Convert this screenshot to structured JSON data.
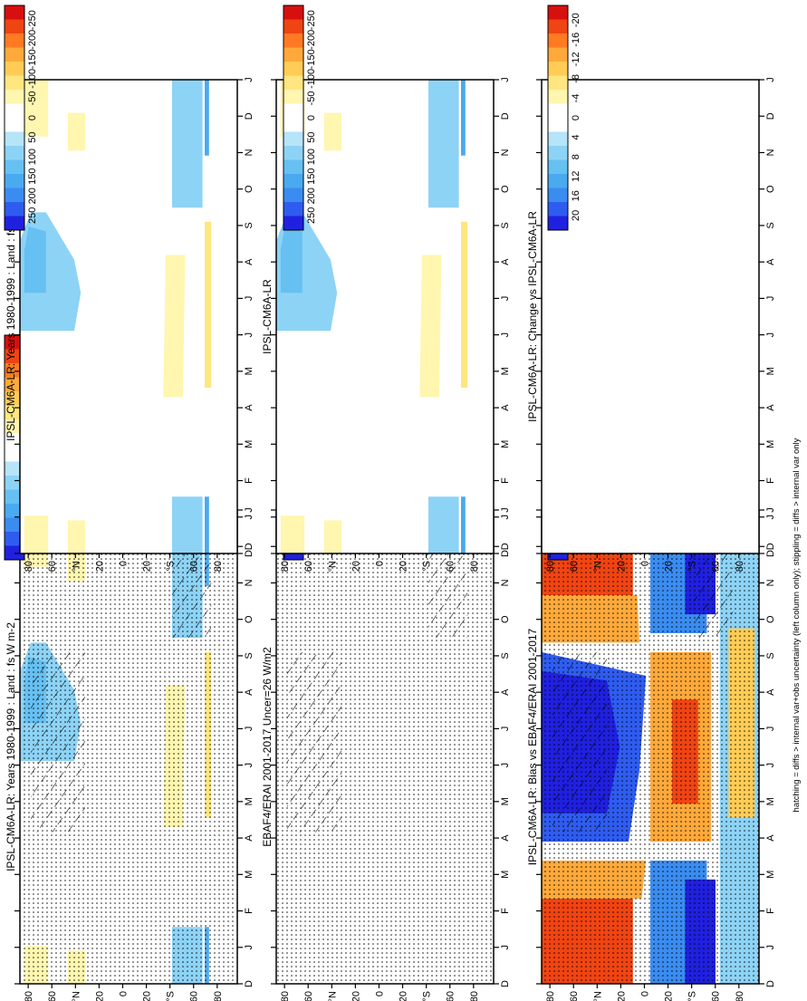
{
  "footer_note": "hatching = diffs > internal var+obs uncertainty (left column only); stippling = diffs > internal var only",
  "colors": {
    "diverging_flux": [
      "#2020e0",
      "#2f5cf0",
      "#3a8cf0",
      "#4aaaf0",
      "#66c0f2",
      "#8dd3f5",
      "#b6e4f8",
      "#ffffff",
      "#ffffff",
      "#fff6b0",
      "#ffe680",
      "#ffcc55",
      "#ffa93a",
      "#ff7a22",
      "#f04412",
      "#d80f0f"
    ],
    "diverging_bias": [
      "#2020e0",
      "#2f5cf0",
      "#3a8cf0",
      "#4aaaf0",
      "#66c0f2",
      "#8dd3f5",
      "#b6e4f8",
      "#ffffff",
      "#ffffff",
      "#fff6b0",
      "#ffe680",
      "#ffcc55",
      "#ffa93a",
      "#ff7a22",
      "#f04412",
      "#d80f0f"
    ]
  },
  "chart_data": [
    {
      "id": "panel-top-left",
      "type": "heatmap",
      "title": "IPSL-CM6A-LR: Years 1980-1999 : Land : fs W m-2",
      "x_ticks": [
        "J",
        "F",
        "M",
        "A",
        "M",
        "J",
        "J",
        "A",
        "S",
        "O",
        "N",
        "D",
        "J"
      ],
      "x_start_label": "D",
      "y_ticks": [
        "80",
        "60",
        "°N",
        "20",
        "0",
        "20",
        "°S",
        "60",
        "80"
      ],
      "colorbar_ticks": [
        "250",
        "200",
        "150",
        "100",
        "50",
        "0",
        "-50",
        "-100",
        "-150",
        "-200",
        "-250"
      ],
      "hatching": true,
      "stippling": true
    },
    {
      "id": "panel-top-right",
      "type": "heatmap",
      "title": "IPSL-CM6A-LR: Years 1980-1999 : Land : fs W m-2",
      "x_ticks": [
        "J",
        "F",
        "M",
        "A",
        "M",
        "J",
        "J",
        "A",
        "S",
        "O",
        "N",
        "D",
        "J"
      ],
      "x_start_label": "D",
      "y_ticks": [
        "80",
        "60",
        "°N",
        "20",
        "0",
        "20",
        "°S",
        "60",
        "80"
      ],
      "colorbar_ticks": [
        "250",
        "200",
        "150",
        "100",
        "50",
        "0",
        "-50",
        "-100",
        "-150",
        "-200",
        "-250"
      ],
      "hatching": false,
      "stippling": false
    },
    {
      "id": "panel-middle-left",
      "type": "heatmap",
      "title": "EBAF4/ERAI 2001-2017 Uncer=26 W/m2",
      "x_ticks": [
        "J",
        "F",
        "M",
        "A",
        "M",
        "J",
        "J",
        "A",
        "S",
        "O",
        "N",
        "D",
        "J"
      ],
      "x_start_label": "D",
      "y_ticks": [
        "80",
        "60",
        "°N",
        "20",
        "0",
        "20",
        "°S",
        "60",
        "80"
      ],
      "colorbar_ticks": [
        "250",
        "200",
        "150",
        "100",
        "50",
        "0",
        "-50",
        "-100",
        "-150",
        "-200",
        "-250"
      ],
      "hatching": true,
      "stippling": true
    },
    {
      "id": "panel-middle-right",
      "type": "heatmap",
      "title": "IPSL-CM6A-LR",
      "x_ticks": [
        "J",
        "F",
        "M",
        "A",
        "M",
        "J",
        "J",
        "A",
        "S",
        "O",
        "N",
        "D",
        "J"
      ],
      "x_start_label": "D",
      "y_ticks": [
        "80",
        "60",
        "°N",
        "20",
        "0",
        "20",
        "°S",
        "60",
        "80"
      ],
      "colorbar_ticks": [
        "250",
        "200",
        "150",
        "100",
        "50",
        "0",
        "-50",
        "-100",
        "-150",
        "-200",
        "-250"
      ],
      "hatching": false,
      "stippling": false
    },
    {
      "id": "panel-bottom-left",
      "type": "heatmap",
      "title": "IPSL-CM6A-LR: Bias vs EBAF4/ERAI 2001-2017",
      "x_ticks": [
        "J",
        "F",
        "M",
        "A",
        "M",
        "J",
        "J",
        "A",
        "S",
        "O",
        "N",
        "D",
        "J"
      ],
      "x_start_label": "D",
      "y_ticks": [
        "80",
        "60",
        "°N",
        "20",
        "0",
        "20",
        "°S",
        "60",
        "80"
      ],
      "colorbar_ticks": [
        "20",
        "16",
        "12",
        "8",
        "4",
        "0",
        "-4",
        "-8",
        "-12",
        "-16",
        "-20"
      ],
      "hatching": true,
      "stippling": true
    },
    {
      "id": "panel-bottom-right",
      "type": "heatmap",
      "title": "IPSL-CM6A-LR: Change vs IPSL-CM6A-LR",
      "x_ticks": [
        "J",
        "F",
        "M",
        "A",
        "M",
        "J",
        "J",
        "A",
        "S",
        "O",
        "N",
        "D",
        "J"
      ],
      "x_start_label": "D",
      "y_ticks": [
        "80",
        "60",
        "°N",
        "20",
        "0",
        "20",
        "°S",
        "60",
        "80"
      ],
      "colorbar_ticks": [
        "20",
        "16",
        "12",
        "8",
        "4",
        "0",
        "-4",
        "-8",
        "-12",
        "-16",
        "-20"
      ],
      "hatching": false,
      "stippling": false
    }
  ]
}
